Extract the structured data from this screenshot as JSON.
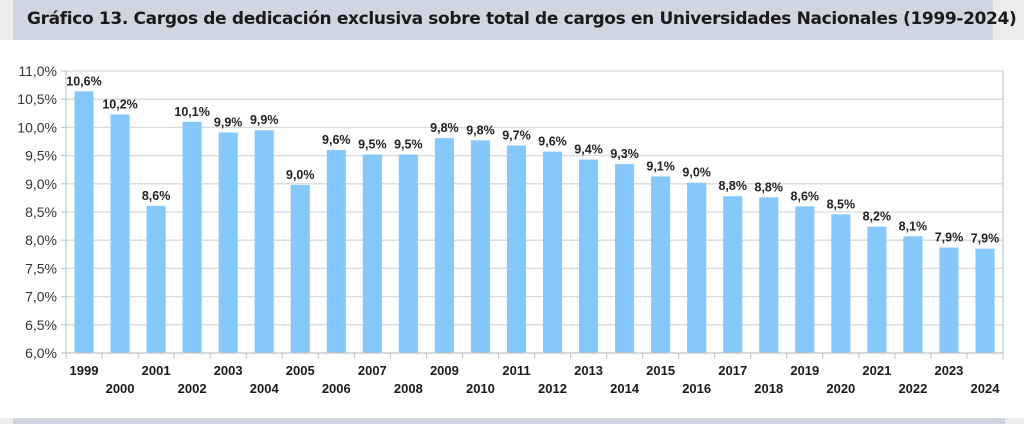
{
  "header": {
    "title": "Gráfico 13. Cargos de dedicación exclusiva sobre total de cargos en Universidades Nacionales (1999-2024)"
  },
  "colors": {
    "bar": "#85c8fb",
    "banner": "#d0d5e2",
    "side_strip": "#ececec",
    "grid": "#d9d9d9"
  },
  "chart_data": {
    "type": "bar",
    "title": "Gráfico 13. Cargos de dedicación exclusiva sobre total de cargos en Universidades Nacionales (1999-2024)",
    "xlabel": "",
    "ylabel": "",
    "ylim": [
      6.0,
      11.0
    ],
    "yticks": [
      6.0,
      6.5,
      7.0,
      7.5,
      8.0,
      8.5,
      9.0,
      9.5,
      10.0,
      10.5,
      11.0
    ],
    "ytick_labels": [
      "6,0%",
      "6,5%",
      "7,0%",
      "7,5%",
      "8,0%",
      "8,5%",
      "9,0%",
      "9,5%",
      "10,0%",
      "10,5%",
      "11,0%"
    ],
    "grid": true,
    "legend": "none",
    "categories": [
      "1999",
      "2000",
      "2001",
      "2002",
      "2003",
      "2004",
      "2005",
      "2006",
      "2007",
      "2008",
      "2009",
      "2010",
      "2011",
      "2012",
      "2013",
      "2014",
      "2015",
      "2016",
      "2017",
      "2018",
      "2019",
      "2020",
      "2021",
      "2022",
      "2023",
      "2024"
    ],
    "values": [
      10.64,
      10.23,
      8.61,
      10.1,
      9.91,
      9.95,
      8.98,
      9.6,
      9.52,
      9.52,
      9.81,
      9.77,
      9.68,
      9.57,
      9.43,
      9.35,
      9.13,
      9.02,
      8.78,
      8.76,
      8.6,
      8.46,
      8.24,
      8.07,
      7.87,
      7.85
    ],
    "data_labels": [
      "10,6%",
      "10,2%",
      "8,6%",
      "10,1%",
      "9,9%",
      "9,9%",
      "9,0%",
      "9,6%",
      "9,5%",
      "9,5%",
      "9,8%",
      "9,8%",
      "9,7%",
      "9,6%",
      "9,4%",
      "9,3%",
      "9,1%",
      "9,0%",
      "8,8%",
      "8,8%",
      "8,6%",
      "8,5%",
      "8,2%",
      "8,1%",
      "7,9%",
      "7,9%"
    ]
  }
}
